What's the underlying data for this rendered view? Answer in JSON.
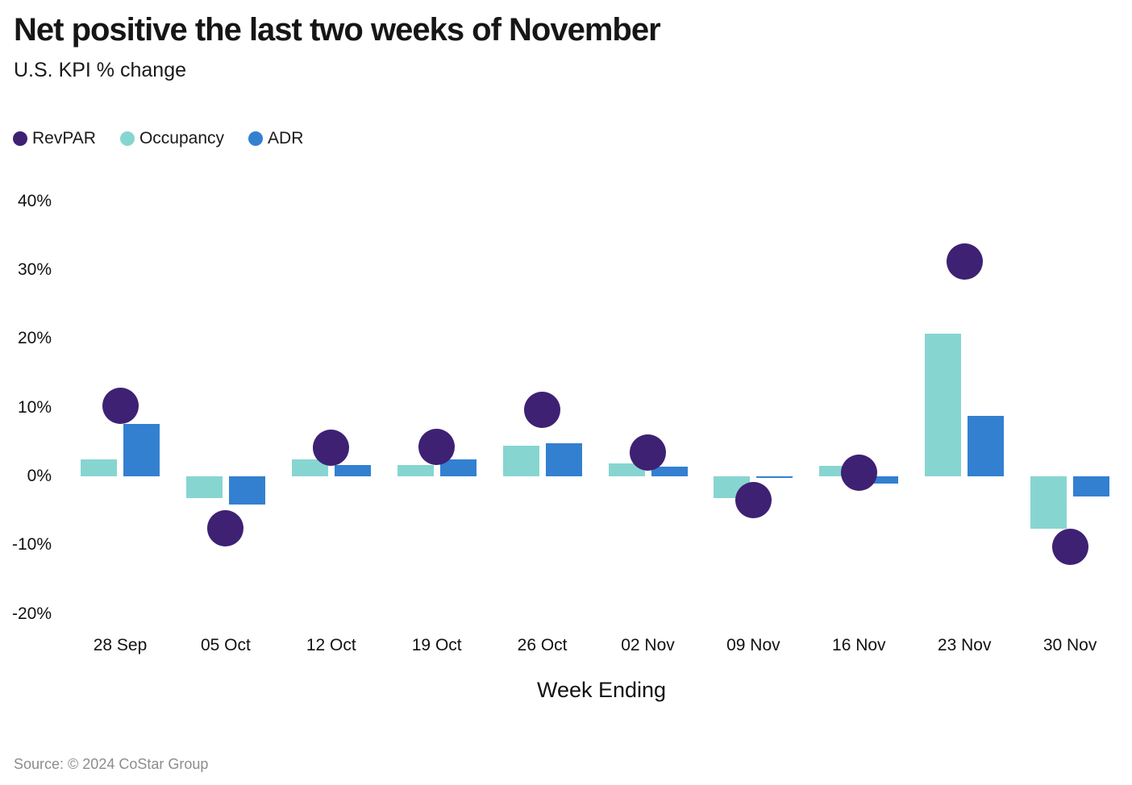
{
  "title": "Net positive the last two weeks of November",
  "subtitle": "U.S. KPI % change",
  "source": "Source: © 2024 CoStar Group",
  "colors": {
    "background": "#FFFFFF",
    "revpar": "#3E2173",
    "occupancy": "#87D5D1",
    "adr": "#3380D0",
    "source_text": "#8C8C8C"
  },
  "legend": [
    {
      "label": "RevPAR",
      "color": "#3E2173"
    },
    {
      "label": "Occupancy",
      "color": "#87D5D1"
    },
    {
      "label": "ADR",
      "color": "#3380D0"
    }
  ],
  "chart_data": {
    "type": "bar",
    "title": "Net positive the last two weeks of November",
    "subtitle": "U.S. KPI % change",
    "xlabel": "Week Ending",
    "ylabel": "",
    "y_unit": "%",
    "ylim": [
      -20,
      40
    ],
    "yticks": [
      40,
      30,
      20,
      10,
      0,
      -10,
      -20
    ],
    "ytick_labels": [
      "40%",
      "30%",
      "20%",
      "10%",
      "0%",
      "-10%",
      "-20%"
    ],
    "grid": false,
    "legend_position": "top-left",
    "categories": [
      "28 Sep",
      "05 Oct",
      "12 Oct",
      "19 Oct",
      "26 Oct",
      "02 Nov",
      "09 Nov",
      "16 Nov",
      "23 Nov",
      "30 Nov"
    ],
    "series": [
      {
        "name": "Occupancy",
        "style": "bar",
        "color": "#87D5D1",
        "values": [
          2.5,
          -3.2,
          2.5,
          1.6,
          4.5,
          1.9,
          -3.2,
          1.5,
          20.7,
          -7.6
        ]
      },
      {
        "name": "ADR",
        "style": "bar",
        "color": "#3380D0",
        "values": [
          7.6,
          -4.1,
          1.6,
          2.5,
          4.8,
          1.4,
          -0.2,
          -1.0,
          8.8,
          -2.9
        ]
      },
      {
        "name": "RevPAR",
        "style": "point",
        "color": "#3E2173",
        "values": [
          10.3,
          -7.6,
          4.2,
          4.3,
          9.7,
          3.4,
          -3.4,
          0.5,
          31.2,
          -10.3
        ]
      }
    ]
  }
}
